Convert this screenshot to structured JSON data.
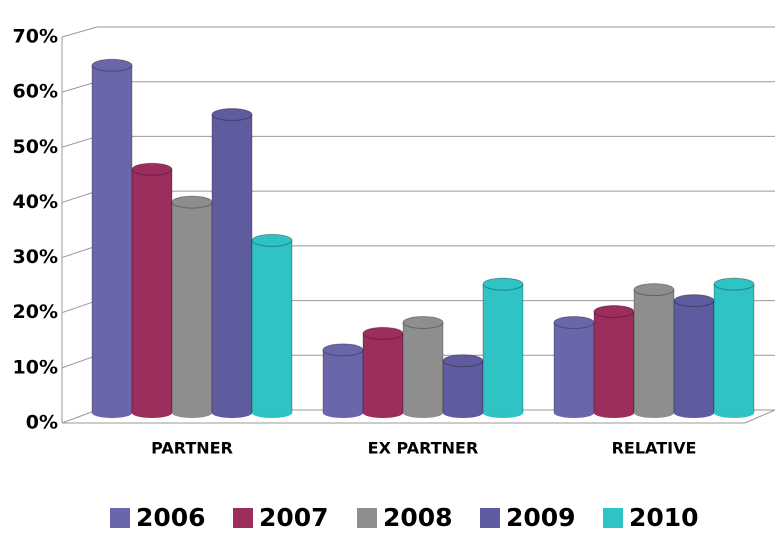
{
  "chart_data": {
    "type": "bar",
    "categories": [
      "PARTNER",
      "EX PARTNER",
      "RELATIVE"
    ],
    "series": [
      {
        "name": "2006",
        "color": "#6a66aa",
        "values": [
          63,
          11,
          16
        ]
      },
      {
        "name": "2007",
        "color": "#9c2e5e",
        "values": [
          44,
          14,
          18
        ]
      },
      {
        "name": "2008",
        "color": "#8e8e8e",
        "values": [
          38,
          16,
          22
        ]
      },
      {
        "name": "2009",
        "color": "#5f5b9f",
        "values": [
          54,
          9,
          20
        ]
      },
      {
        "name": "2010",
        "color": "#2fc3c3",
        "values": [
          31,
          23,
          23
        ]
      }
    ],
    "ylim": [
      0,
      70
    ],
    "yticks": [
      {
        "value": 0,
        "label": "0%"
      },
      {
        "value": 10,
        "label": "10%"
      },
      {
        "value": 20,
        "label": "20%"
      },
      {
        "value": 30,
        "label": "30%"
      },
      {
        "value": 40,
        "label": "40%"
      },
      {
        "value": 50,
        "label": "50%"
      },
      {
        "value": 60,
        "label": "60%"
      },
      {
        "value": 70,
        "label": "70%"
      }
    ],
    "grid": true
  }
}
